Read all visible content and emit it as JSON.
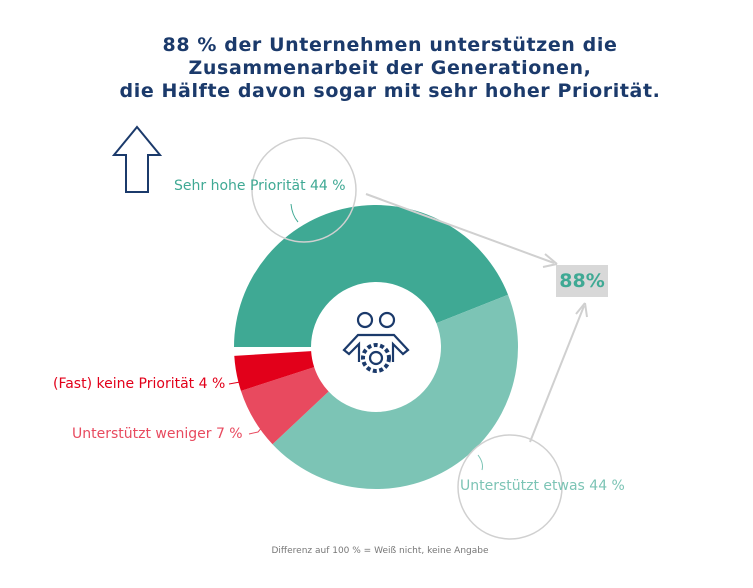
{
  "title_lines": [
    "88 % der Unternehmen unterstützen die",
    "Zusammenarbeit der Generationen,",
    "die Hälfte davon sogar mit sehr hoher Priorität."
  ],
  "chart_data": {
    "type": "donut",
    "categories": [
      "Sehr hohe Priorität",
      "Unterstützt etwas",
      "Unterstützt weniger",
      "(Fast) keine Priorität"
    ],
    "values": [
      44,
      44,
      7,
      4
    ],
    "labels": [
      "Sehr hohe Priorität 44 %",
      "Unterstützt etwas 44 %",
      "Unterstützt weniger 7 %",
      "(Fast) keine Priorität 4 %"
    ],
    "colors": [
      "#3fa994",
      "#7cc4b5",
      "#e84a5f",
      "#e2001a"
    ],
    "total_label": "88%",
    "center_icon": "people-gear-icon"
  },
  "up_arrow_icon": "arrow-up-icon",
  "footnote": "Differenz auf 100 %  = Weiß nicht, keine Angabe"
}
